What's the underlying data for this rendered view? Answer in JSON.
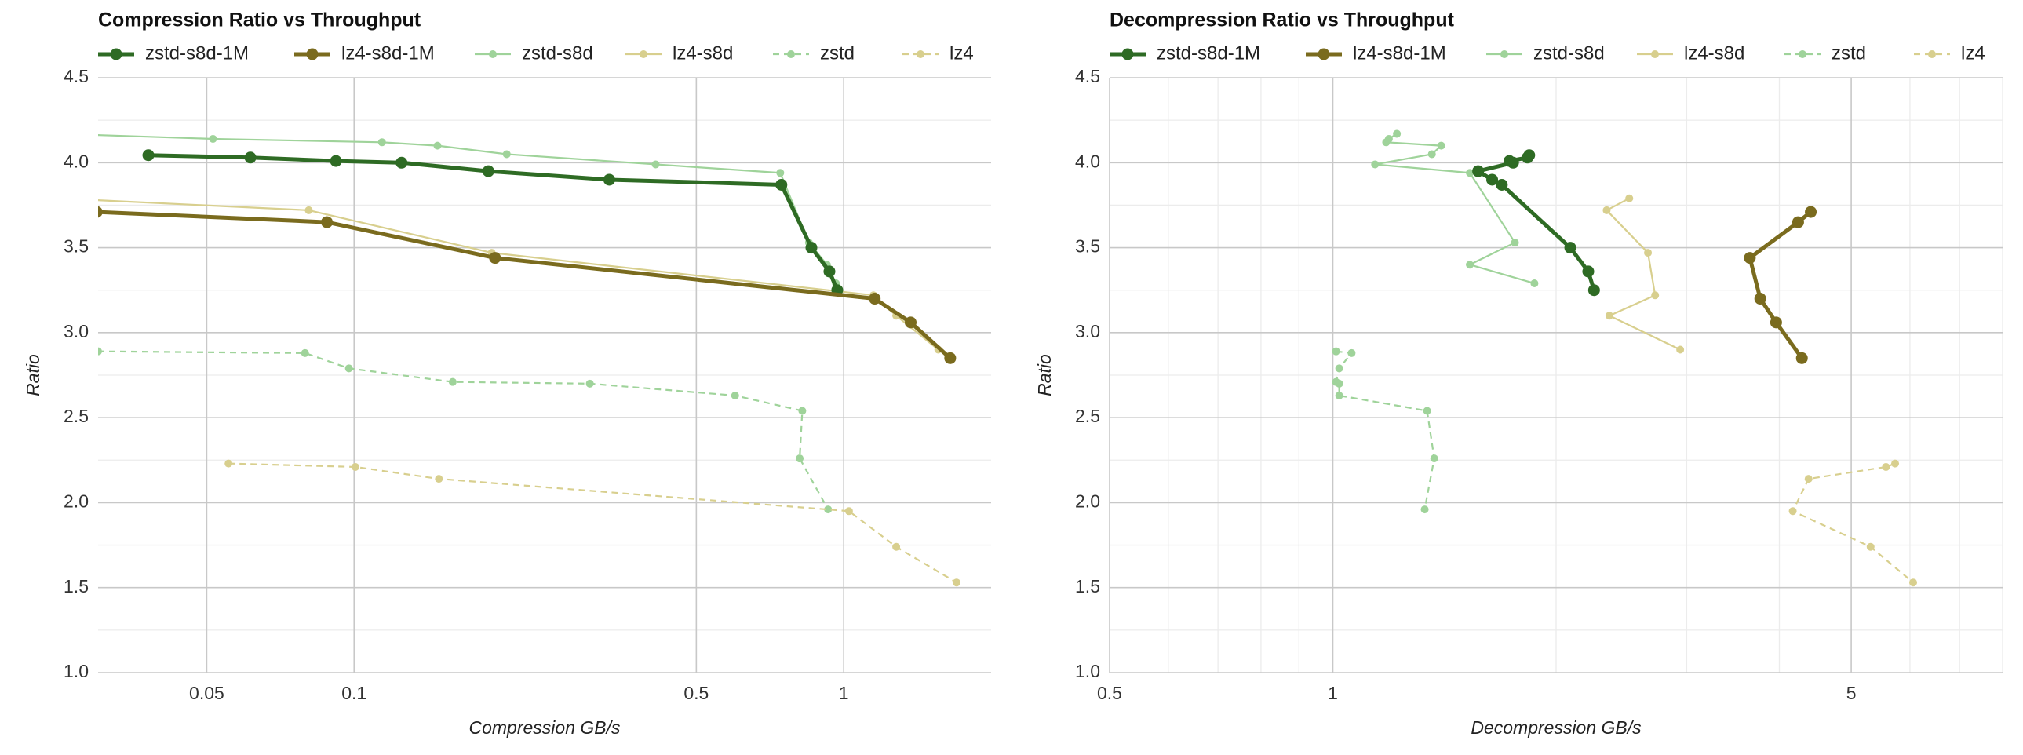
{
  "chart_data": [
    {
      "type": "line",
      "title": "Compression Ratio vs Throughput",
      "xlabel": "Compression GB/s",
      "ylabel": "Ratio",
      "xscale": "log",
      "xlim": [
        0.03,
        2.0
      ],
      "ylim": [
        1.0,
        4.5
      ],
      "xticks": [
        0.05,
        0.1,
        0.5,
        1
      ],
      "yticks": [
        {
          "value": 1,
          "label": "1.0"
        },
        1.5,
        {
          "value": 2,
          "label": "2.0"
        },
        2.5,
        {
          "value": 3,
          "label": "3.0"
        },
        3.5,
        {
          "value": 4,
          "label": "4.0"
        },
        4.5
      ],
      "y_minor_grid": [
        1.25,
        1.75,
        2.25,
        2.75,
        3.25,
        3.75,
        4.25
      ],
      "x_minor_grid": [],
      "grid": true,
      "legend": "top",
      "series": [
        {
          "name": "zstd-s8d-1M",
          "color": "#2e6b24",
          "linestyle": "solid",
          "emphasis": true,
          "x": [
            0.038,
            0.0614,
            0.0918,
            0.125,
            0.188,
            0.332,
            0.746,
            0.859,
            0.935,
            0.97
          ],
          "values": [
            4.044,
            4.03,
            4.01,
            4.0,
            3.95,
            3.9,
            3.87,
            3.5,
            3.36,
            3.25
          ]
        },
        {
          "name": "lz4-s8d-1M",
          "color": "#7a6b1e",
          "linestyle": "solid",
          "emphasis": true,
          "x": [
            0.0298,
            0.088,
            0.194,
            1.157,
            1.37,
            1.65
          ],
          "values": [
            3.71,
            3.65,
            3.44,
            3.2,
            3.06,
            2.85
          ]
        },
        {
          "name": "zstd-s8d",
          "color": "#9fd39a",
          "linestyle": "solid",
          "emphasis": false,
          "x": [
            0.025,
            0.0515,
            0.114,
            0.148,
            0.205,
            0.413,
            0.742,
            0.849,
            0.924,
            0.964
          ],
          "values": [
            4.17,
            4.14,
            4.12,
            4.1,
            4.05,
            3.99,
            3.94,
            3.53,
            3.4,
            3.29
          ]
        },
        {
          "name": "lz4-s8d",
          "color": "#d8cf8e",
          "linestyle": "solid",
          "emphasis": false,
          "x": [
            0.025,
            0.0808,
            0.191,
            1.15,
            1.28,
            1.56
          ],
          "values": [
            3.79,
            3.72,
            3.47,
            3.22,
            3.1,
            2.9
          ]
        },
        {
          "name": "zstd",
          "color": "#9fd39a",
          "linestyle": "dashed",
          "emphasis": false,
          "x": [
            0.03,
            0.0794,
            0.0976,
            0.159,
            0.303,
            0.6,
            0.823,
            0.813,
            0.929
          ],
          "values": [
            2.89,
            2.88,
            2.79,
            2.71,
            2.7,
            2.63,
            2.54,
            2.26,
            1.96
          ]
        },
        {
          "name": "lz4",
          "color": "#d8cf8e",
          "linestyle": "dashed",
          "emphasis": false,
          "x": [
            0.0554,
            0.1006,
            0.149,
            1.025,
            1.28,
            1.7
          ],
          "values": [
            2.23,
            2.21,
            2.14,
            1.95,
            1.74,
            1.53
          ]
        }
      ]
    },
    {
      "type": "line",
      "title": "Decompression Ratio vs Throughput",
      "xlabel": "Decompression GB/s",
      "ylabel": "Ratio",
      "xscale": "log",
      "xlim": [
        0.5,
        8.0
      ],
      "ylim": [
        1.0,
        4.5
      ],
      "xticks": [
        0.5,
        1,
        5
      ],
      "yticks": [
        {
          "value": 1,
          "label": "1.0"
        },
        1.5,
        {
          "value": 2,
          "label": "2.0"
        },
        2.5,
        {
          "value": 3,
          "label": "3.0"
        },
        3.5,
        {
          "value": 4,
          "label": "4.0"
        },
        4.5
      ],
      "y_minor_grid": [
        1.25,
        1.75,
        2.25,
        2.75,
        3.25,
        3.75,
        4.25
      ],
      "x_minor_grid": [
        0.6,
        0.7,
        0.8,
        0.9,
        2,
        3,
        4,
        6,
        7,
        8
      ],
      "grid": true,
      "legend": "top",
      "series": [
        {
          "name": "zstd-s8d-1M",
          "color": "#2e6b24",
          "linestyle": "solid",
          "emphasis": true,
          "x": [
            1.84,
            1.83,
            1.73,
            1.75,
            1.57,
            1.64,
            1.69,
            2.09,
            2.21,
            2.25
          ],
          "values": [
            4.044,
            4.03,
            4.01,
            4.0,
            3.95,
            3.9,
            3.87,
            3.5,
            3.36,
            3.25
          ]
        },
        {
          "name": "lz4-s8d-1M",
          "color": "#7a6b1e",
          "linestyle": "solid",
          "emphasis": true,
          "x": [
            4.41,
            4.24,
            3.65,
            3.77,
            3.96,
            4.29
          ],
          "values": [
            3.71,
            3.65,
            3.44,
            3.2,
            3.06,
            2.85
          ]
        },
        {
          "name": "zstd-s8d",
          "color": "#9fd39a",
          "linestyle": "solid",
          "emphasis": false,
          "x": [
            1.22,
            1.19,
            1.18,
            1.4,
            1.36,
            1.14,
            1.53,
            1.76,
            1.53,
            1.87
          ],
          "values": [
            4.17,
            4.14,
            4.12,
            4.1,
            4.05,
            3.99,
            3.94,
            3.53,
            3.4,
            3.29
          ]
        },
        {
          "name": "lz4-s8d",
          "color": "#d8cf8e",
          "linestyle": "solid",
          "emphasis": false,
          "x": [
            2.51,
            2.34,
            2.66,
            2.72,
            2.36,
            2.94
          ],
          "values": [
            3.79,
            3.72,
            3.47,
            3.22,
            3.1,
            2.9
          ]
        },
        {
          "name": "zstd",
          "color": "#9fd39a",
          "linestyle": "dashed",
          "emphasis": false,
          "x": [
            1.01,
            1.06,
            1.02,
            1.01,
            1.02,
            1.02,
            1.34,
            1.37,
            1.33
          ],
          "values": [
            2.89,
            2.88,
            2.79,
            2.71,
            2.7,
            2.63,
            2.54,
            2.26,
            1.96
          ]
        },
        {
          "name": "lz4",
          "color": "#d8cf8e",
          "linestyle": "dashed",
          "emphasis": false,
          "x": [
            5.73,
            5.57,
            4.38,
            4.17,
            5.31,
            6.06
          ],
          "values": [
            2.23,
            2.21,
            2.14,
            1.95,
            1.74,
            1.53
          ]
        }
      ]
    }
  ]
}
